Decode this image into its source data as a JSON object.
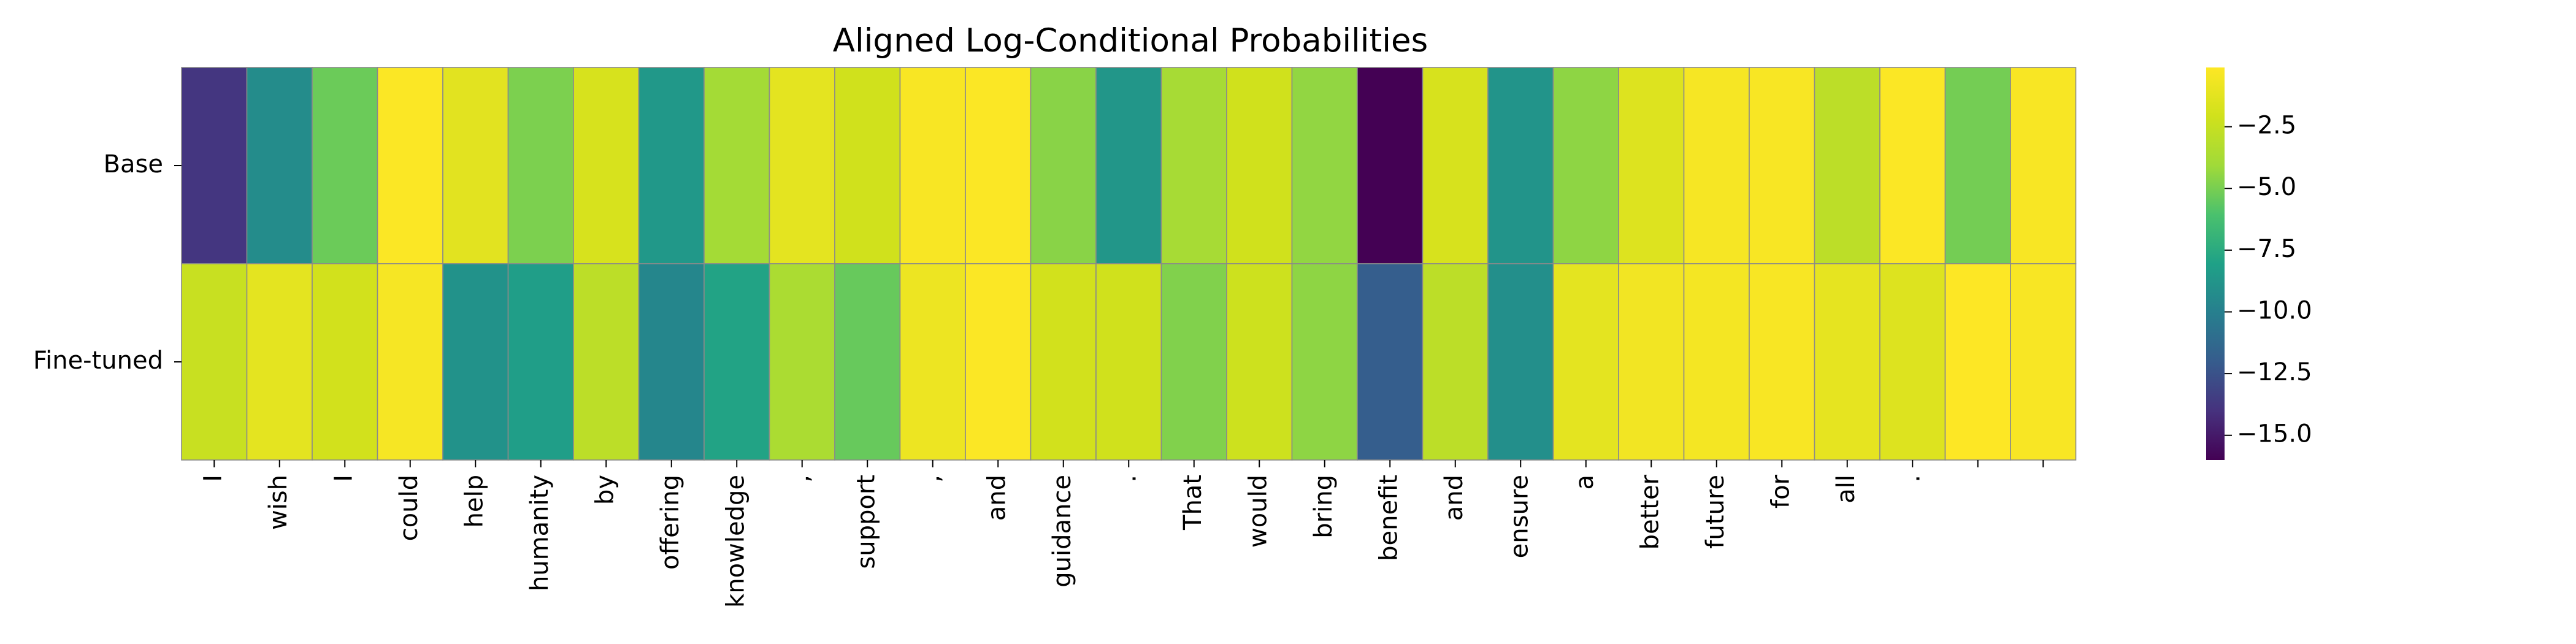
{
  "chart_data": {
    "type": "heatmap",
    "title": "Aligned Log-Conditional Probabilities",
    "xlabel": "",
    "ylabel": "",
    "rows": [
      "Base",
      "Fine-tuned"
    ],
    "columns": [
      "I",
      "wish",
      "I",
      "could",
      "help",
      "humanity",
      "by",
      "offering",
      "knowledge",
      ",",
      "support",
      ",",
      "and",
      "guidance",
      ".",
      "That",
      "would",
      "bring",
      "benefit",
      "and",
      "ensure",
      "a",
      "better",
      "future",
      "for",
      "all",
      ".",
      "",
      ""
    ],
    "values": [
      [
        -13.8,
        -9.3,
        -5.3,
        -0.2,
        -1.3,
        -4.9,
        -1.8,
        -8.6,
        -3.9,
        -1.2,
        -2.1,
        -0.3,
        -0.2,
        -4.6,
        -8.7,
        -3.8,
        -2.1,
        -4.4,
        -16.0,
        -1.8,
        -8.8,
        -4.5,
        -1.5,
        -0.4,
        -0.3,
        -2.9,
        -0.2,
        -5.1,
        -0.3
      ],
      [
        -2.4,
        -1.2,
        -2.0,
        -0.4,
        -8.9,
        -8.2,
        -2.9,
        -9.6,
        -7.9,
        -3.6,
        -5.4,
        -0.8,
        -0.2,
        -2.0,
        -2.1,
        -4.8,
        -2.2,
        -4.5,
        -11.9,
        -2.9,
        -9.1,
        -1.2,
        -0.6,
        -0.5,
        -0.3,
        -1.1,
        -1.5,
        -0.1,
        -0.3
      ]
    ],
    "color_scale": {
      "name": "viridis",
      "min": -16.0,
      "max": -0.1,
      "ticks": [
        -2.5,
        -5.0,
        -7.5,
        -10.0,
        -12.5,
        -15.0
      ],
      "tick_labels": [
        "−2.5",
        "−5.0",
        "−7.5",
        "−10.0",
        "−12.5",
        "−15.0"
      ]
    },
    "cell_border_color": "#8a8a8a",
    "grid": false,
    "legend": "colorbar-right"
  }
}
